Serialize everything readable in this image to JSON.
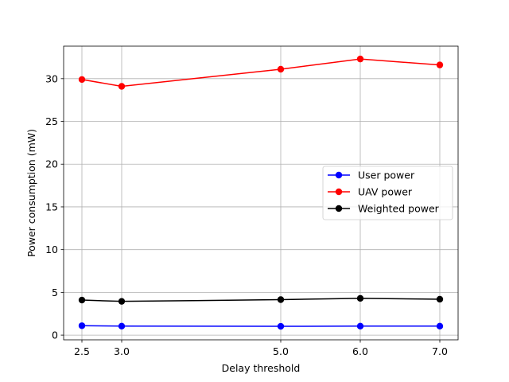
{
  "chart_data": {
    "type": "line",
    "x": [
      2.5,
      3.0,
      5.0,
      6.0,
      7.0
    ],
    "x_ticks": [
      "2.5",
      "3.0",
      "5.0",
      "6.0",
      "7.0"
    ],
    "y_ticks": [
      "0",
      "5",
      "10",
      "15",
      "20",
      "25",
      "30"
    ],
    "y_tick_values": [
      0,
      5,
      10,
      15,
      20,
      25,
      30
    ],
    "xlim": [
      2.27,
      7.23
    ],
    "ylim": [
      -0.55,
      33.8
    ],
    "xlabel": "Delay threshold",
    "ylabel": "Power consumption (mW)",
    "grid": true,
    "legend_position": "center-right",
    "series": [
      {
        "name": "User power",
        "color": "#0000ff",
        "values": [
          1.1,
          1.05,
          1.03,
          1.05,
          1.05
        ]
      },
      {
        "name": "UAV power",
        "color": "#ff0000",
        "values": [
          29.9,
          29.1,
          31.1,
          32.3,
          31.6
        ]
      },
      {
        "name": "Weighted power",
        "color": "#000000",
        "values": [
          4.1,
          3.95,
          4.15,
          4.3,
          4.2
        ]
      }
    ]
  }
}
